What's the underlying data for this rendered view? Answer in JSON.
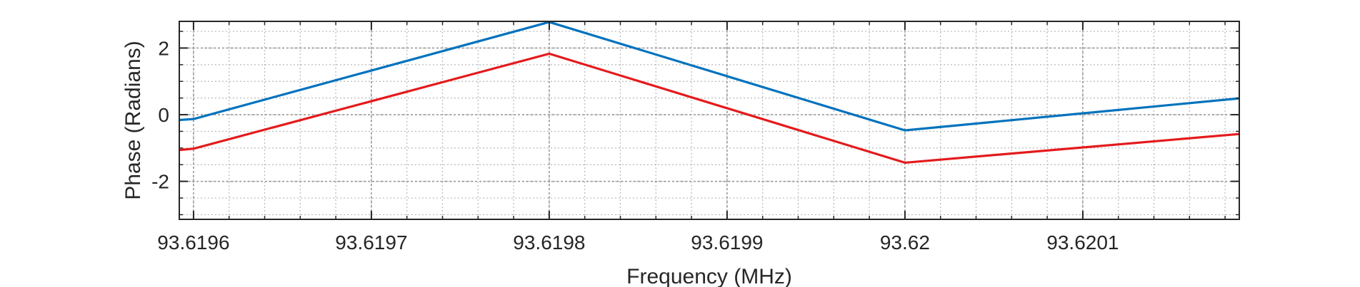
{
  "chart_data": {
    "type": "line",
    "xlabel": "Frequency (MHz)",
    "ylabel": "Phase (Radians)",
    "xlim": [
      93.619592,
      93.620188
    ],
    "ylim": [
      -3.14,
      2.8
    ],
    "x_ticks": [
      93.6196,
      93.6197,
      93.6198,
      93.6199,
      93.62,
      93.6201
    ],
    "x_tick_labels": [
      "93.6196",
      "93.6197",
      "93.6198",
      "93.6199",
      "93.62",
      "93.6201"
    ],
    "y_ticks": [
      -2,
      0,
      2
    ],
    "y_tick_labels": [
      "-2",
      "0",
      "2"
    ],
    "grid": true,
    "minor_grid": true,
    "legend": "none",
    "series": [
      {
        "color": "#0072bd",
        "x": [
          93.619592,
          93.6196,
          93.6198,
          93.62,
          93.620188
        ],
        "y": [
          -0.16,
          -0.13,
          2.78,
          -0.47,
          0.49
        ]
      },
      {
        "color": "#e41a1c",
        "x": [
          93.619592,
          93.6196,
          93.6198,
          93.62,
          93.620188
        ],
        "y": [
          -1.06,
          -1.02,
          1.83,
          -1.44,
          -0.58
        ]
      }
    ]
  }
}
